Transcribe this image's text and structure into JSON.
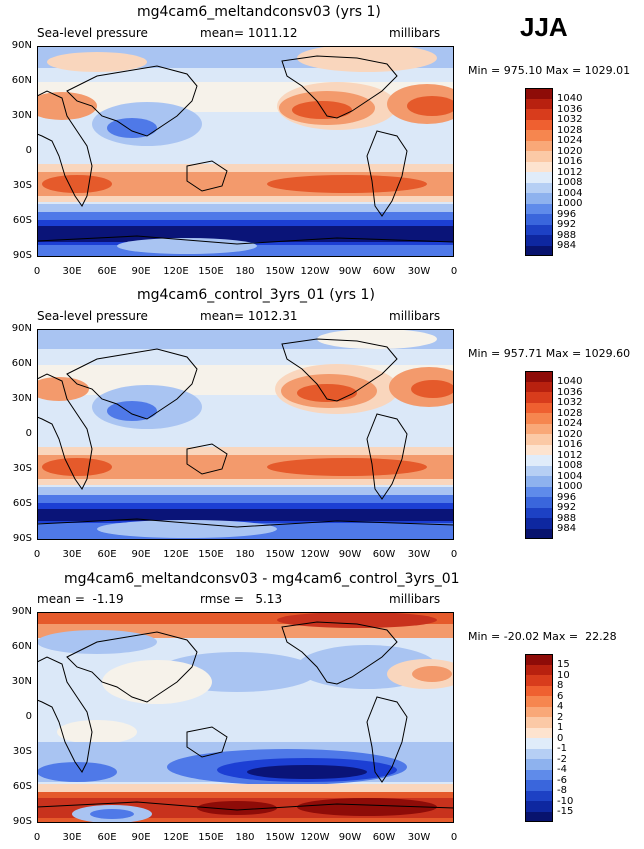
{
  "season": "JJA",
  "axes": {
    "lat_labels": [
      "90N",
      "60N",
      "30N",
      "0",
      "30S",
      "60S",
      "90S"
    ],
    "lon_labels": [
      "0",
      "30E",
      "60E",
      "90E",
      "120E",
      "150E",
      "180",
      "150W",
      "120W",
      "90W",
      "60W",
      "30W",
      "0"
    ]
  },
  "colors": {
    "blue_dark": "#0a1478",
    "blue": "#1c3fd4",
    "blue_mid": "#4f79e8",
    "blue_light": "#a9c4f2",
    "blue_pale": "#dbe8f8",
    "neutral": "#f6f2ea",
    "orange_pale": "#f9d6bd",
    "orange": "#f39a6c",
    "red_orange": "#e55a2b",
    "red": "#c8321d",
    "red_dark": "#8e0c08"
  },
  "panels": [
    {
      "title": "mg4cam6_meltandconsv03 (yrs 1)",
      "left_label": "Sea-level pressure",
      "center_label": "mean= 1011.12",
      "right_label": "millibars",
      "stats": "Min = 975.10 Max = 1029.01",
      "colorbar_labels": [
        "1040",
        "1036",
        "1032",
        "1028",
        "1024",
        "1020",
        "1016",
        "1012",
        "1008",
        "1004",
        "1000",
        "996",
        "992",
        "988",
        "984"
      ],
      "colorbar_colors": [
        "#8e0c08",
        "#b8210f",
        "#d83c1c",
        "#ef6030",
        "#f6864f",
        "#f9a878",
        "#fbc9a6",
        "#fde3cf",
        "#e0ecfa",
        "#b6cff4",
        "#8eb2ee",
        "#5f8bea",
        "#3a66dc",
        "#1d41c4",
        "#0e27a0",
        "#08136e"
      ]
    },
    {
      "title": "mg4cam6_control_3yrs_01 (yrs 1)",
      "left_label": "Sea-level pressure",
      "center_label": "mean= 1012.31",
      "right_label": "millibars",
      "stats": "Min = 957.71 Max = 1029.60",
      "colorbar_labels": [
        "1040",
        "1036",
        "1032",
        "1028",
        "1024",
        "1020",
        "1016",
        "1012",
        "1008",
        "1004",
        "1000",
        "996",
        "992",
        "988",
        "984"
      ],
      "colorbar_colors": [
        "#8e0c08",
        "#b8210f",
        "#d83c1c",
        "#ef6030",
        "#f6864f",
        "#f9a878",
        "#fbc9a6",
        "#fde3cf",
        "#e0ecfa",
        "#b6cff4",
        "#8eb2ee",
        "#5f8bea",
        "#3a66dc",
        "#1d41c4",
        "#0e27a0",
        "#08136e"
      ]
    },
    {
      "title": "mg4cam6_meltandconsv03 - mg4cam6_control_3yrs_01",
      "left_label": "mean =  -1.19",
      "center_label": "rmse =   5.13",
      "right_label": "millibars",
      "stats": "Min = -20.02 Max =  22.28",
      "colorbar_labels": [
        "15",
        "10",
        "8",
        "6",
        "4",
        "2",
        "1",
        "0",
        "-1",
        "-2",
        "-4",
        "-6",
        "-8",
        "-10",
        "-15"
      ],
      "colorbar_colors": [
        "#8e0c08",
        "#b8210f",
        "#d83c1c",
        "#ef6030",
        "#f6864f",
        "#f9a878",
        "#fbc9a6",
        "#fde3cf",
        "#e0ecfa",
        "#b6cff4",
        "#8eb2ee",
        "#5f8bea",
        "#3a66dc",
        "#1d41c4",
        "#0e27a0",
        "#08136e"
      ]
    }
  ]
}
